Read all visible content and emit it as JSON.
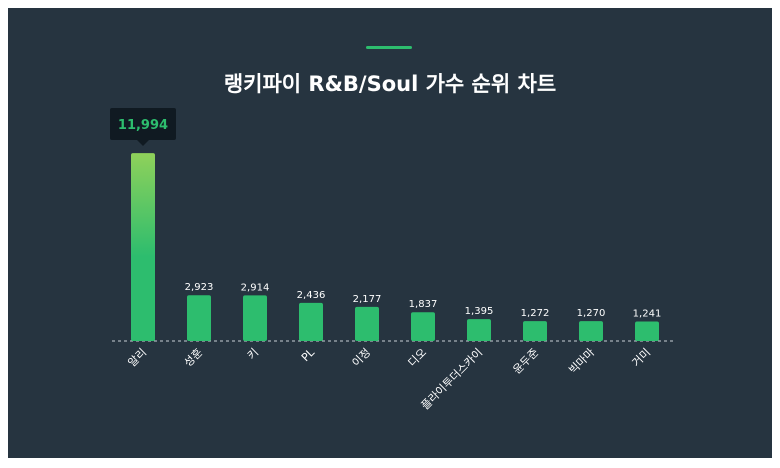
{
  "title": "랭키파이 R&B/Soul 가수 순위 차트",
  "colors": {
    "background": "#263440",
    "bar": "#2dbd6e",
    "bar_top_highlight": "#8fd15a",
    "accent": "#2dbd6e",
    "tooltip_bg": "#101a22",
    "tooltip_text": "#2dbd6e",
    "label_text": "#ffffff"
  },
  "tooltip": {
    "value_label": "11,994"
  },
  "chart_data": {
    "type": "bar",
    "title": "랭키파이 R&B/Soul 가수 순위 차트",
    "categories": [
      "알리",
      "성훈",
      "키",
      "PL",
      "이정",
      "디오",
      "플라이투더스카이",
      "윤두준",
      "빅마마",
      "거미"
    ],
    "values": [
      11994,
      2923,
      2914,
      2436,
      2177,
      1837,
      1395,
      1272,
      1270,
      1241
    ],
    "value_labels": [
      "11,994",
      "2,923",
      "2,914",
      "2,436",
      "2,177",
      "1,837",
      "1,395",
      "1,272",
      "1,270",
      "1,241"
    ],
    "ylim": [
      0,
      12000
    ],
    "grid": false,
    "legend": "none"
  }
}
